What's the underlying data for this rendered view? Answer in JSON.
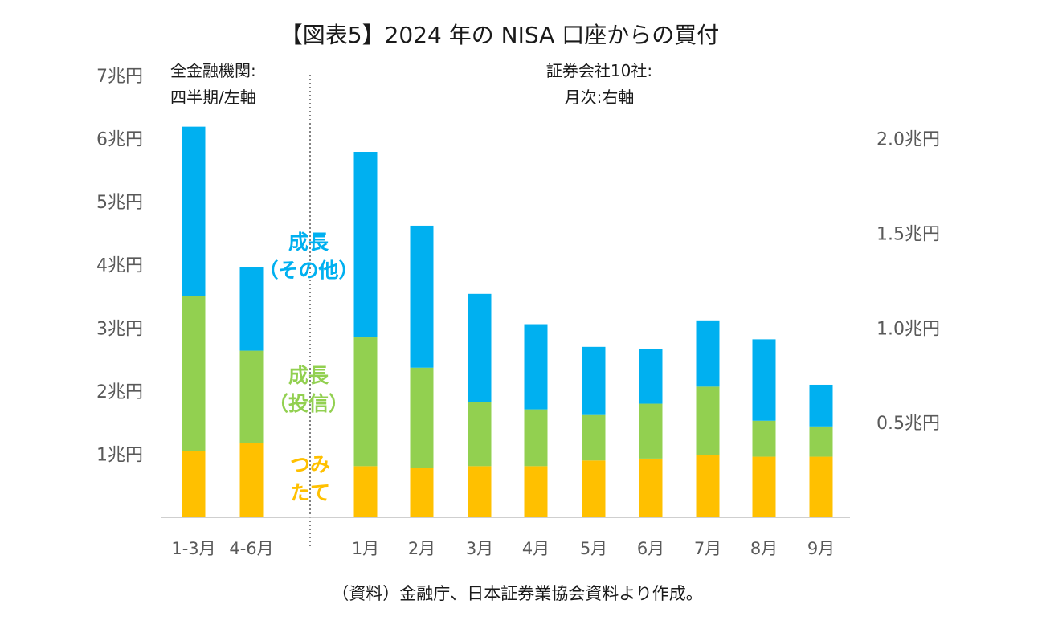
{
  "colors": {
    "tsumitate": "#FFC000",
    "growth_fund": "#92D050",
    "growth_other": "#00B0F0",
    "axis_text": "#595959",
    "title_text": "#1a1a1a"
  },
  "chart_data": {
    "type": "bar",
    "stacked": true,
    "title": "【図表5】2024 年の NISA 口座からの買付",
    "source": "（資料）金融庁、日本証券業協会資料より作成。",
    "groups": [
      {
        "note_lines": [
          "全金融機関:",
          "四半期/左軸"
        ],
        "axis": "left",
        "categories": [
          "1-3月",
          "4-6月"
        ],
        "series": [
          {
            "name": "つみたて",
            "values": [
              1.05,
              1.18
            ]
          },
          {
            "name": "成長（投信）",
            "values": [
              2.46,
              1.46
            ]
          },
          {
            "name": "成長（その他）",
            "values": [
              2.68,
              1.32
            ]
          }
        ]
      },
      {
        "note_lines": [
          "証券会社10社:",
          "月次:右軸"
        ],
        "axis": "right",
        "categories": [
          "1月",
          "2月",
          "3月",
          "4月",
          "5月",
          "6月",
          "7月",
          "8月",
          "9月"
        ],
        "series": [
          {
            "name": "つみたて",
            "values": [
              0.27,
              0.26,
              0.27,
              0.27,
              0.3,
              0.31,
              0.33,
              0.32,
              0.32
            ]
          },
          {
            "name": "成長（投信）",
            "values": [
              0.68,
              0.53,
              0.34,
              0.3,
              0.24,
              0.29,
              0.36,
              0.19,
              0.16
            ]
          },
          {
            "name": "成長（その他）",
            "values": [
              0.98,
              0.75,
              0.57,
              0.45,
              0.36,
              0.29,
              0.35,
              0.43,
              0.22
            ]
          }
        ]
      }
    ],
    "left_axis": {
      "min": 0,
      "max": 7,
      "ticks": [
        1,
        2,
        3,
        4,
        5,
        6,
        7
      ],
      "tick_labels": [
        "1兆円",
        "2兆円",
        "3兆円",
        "4兆円",
        "5兆円",
        "6兆円",
        "7兆円"
      ]
    },
    "right_axis": {
      "min": 0,
      "max": 2.333,
      "ticks": [
        0.5,
        1.0,
        1.5,
        2.0
      ],
      "tick_labels": [
        "0.5兆円",
        "1.0兆円",
        "1.5兆円",
        "2.0兆円"
      ]
    },
    "series_labels": [
      {
        "key": "growth_other",
        "lines": [
          "成長",
          "（その他）"
        ]
      },
      {
        "key": "growth_fund",
        "lines": [
          "成長",
          "（投信）"
        ]
      },
      {
        "key": "tsumitate",
        "lines": [
          "つみ",
          "たて"
        ]
      }
    ]
  }
}
